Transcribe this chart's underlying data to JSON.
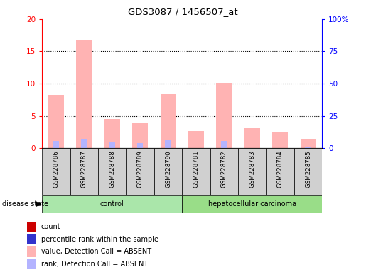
{
  "title": "GDS3087 / 1456507_at",
  "samples": [
    "GSM228786",
    "GSM228787",
    "GSM228788",
    "GSM228789",
    "GSM228790",
    "GSM228781",
    "GSM228782",
    "GSM228783",
    "GSM228784",
    "GSM228785"
  ],
  "groups": [
    "control",
    "control",
    "control",
    "control",
    "control",
    "hepatocellular carcinoma",
    "hepatocellular carcinoma",
    "hepatocellular carcinoma",
    "hepatocellular carcinoma",
    "hepatocellular carcinoma"
  ],
  "value_absent": [
    8.2,
    16.7,
    4.5,
    3.9,
    8.5,
    2.7,
    10.1,
    3.2,
    2.5,
    1.5
  ],
  "rank_absent": [
    5.8,
    7.5,
    4.6,
    3.8,
    6.1,
    null,
    5.9,
    null,
    null,
    0.9
  ],
  "ylim_left": [
    0,
    20
  ],
  "ylim_right": [
    0,
    100
  ],
  "yticks_left": [
    0,
    5,
    10,
    15,
    20
  ],
  "yticks_right": [
    0,
    25,
    50,
    75,
    100
  ],
  "yticklabels_left": [
    "0",
    "5",
    "10",
    "15",
    "20"
  ],
  "yticklabels_right": [
    "0",
    "25",
    "50",
    "75",
    "100%"
  ],
  "color_value_absent": "#ffb3b3",
  "color_rank_absent": "#b3b3ff",
  "color_count": "#cc0000",
  "color_rank_dark": "#3333cc",
  "grid_color": "black",
  "bg_xticklabels": "#d0d0d0",
  "group_color_control": "#aae6aa",
  "group_color_cancer": "#99dd88",
  "disease_state_label": "disease state",
  "legend_items": [
    {
      "label": "count",
      "color": "#cc0000"
    },
    {
      "label": "percentile rank within the sample",
      "color": "#3333cc"
    },
    {
      "label": "value, Detection Call = ABSENT",
      "color": "#ffb3b3"
    },
    {
      "label": "rank, Detection Call = ABSENT",
      "color": "#b3b3ff"
    }
  ],
  "fig_width": 5.15,
  "fig_height": 3.84,
  "dpi": 100
}
